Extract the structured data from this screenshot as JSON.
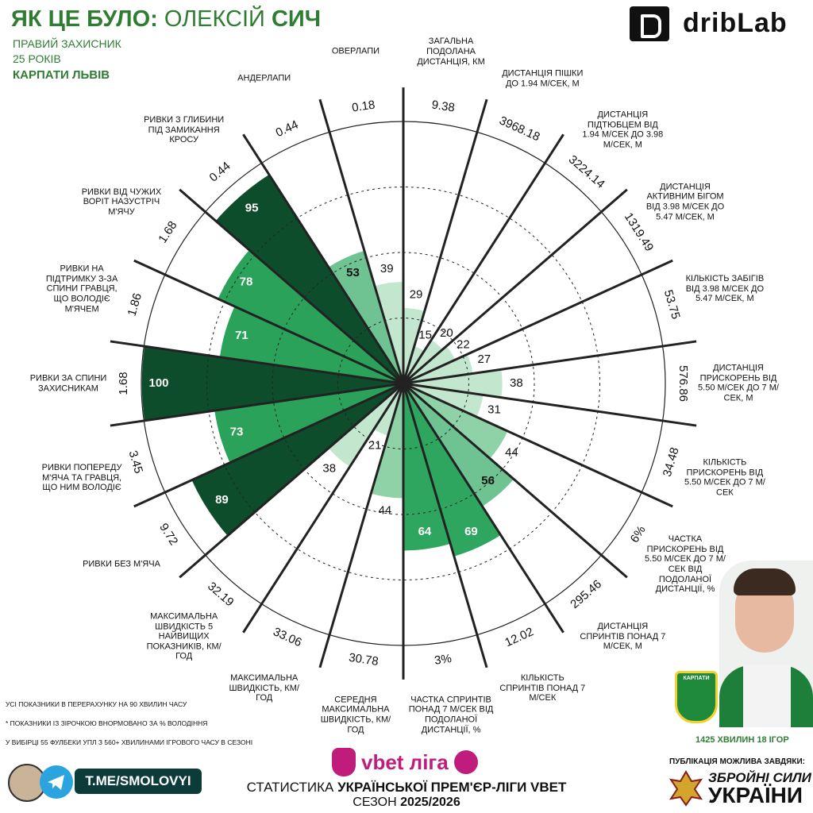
{
  "header": {
    "title_parts": [
      "ЯК ЦЕ БУЛО:",
      "ОЛЕКСІЙ",
      "СИЧ"
    ],
    "position": "ПРАВИЙ ЗАХИСНИК",
    "age": "25 РОКІВ",
    "club": "КАРПАТИ ЛЬВІВ",
    "brand": "dribLab"
  },
  "chart_data": {
    "type": "polar",
    "categories": [
      "ЗАГАЛЬНА ПОДОЛАНА ДИСТАНЦІЯ, КМ",
      "ДИСТАНЦІЯ ПІШКИ ДО 1.94 М/СЕК, М",
      "ДИСТАНЦІЯ ПІДТЮБЦЕМ ВІД 1.94 М/СЕК ДО 3.98 М/СЕК, М",
      "ДИСТАНЦІЯ АКТИВНИМ БІГОМ ВІД 3.98 М/СЕК ДО 5.47 М/СЕК, М",
      "КІЛЬКІСТЬ ЗАБІГІВ ВІД 3.98 М/СЕК ДО 5.47 М/СЕК, М",
      "ДИСТАНЦІЯ ПРИСКОРЕНЬ ВІД 5.50 М/СЕК ДО 7 М/СЕК, М",
      "КІЛЬКІСТЬ ПРИСКОРЕНЬ ВІД 5.50 М/СЕК ДО 7 М/СЕК",
      "ЧАСТКА ПРИСКОРЕНЬ ВІД 5.50 М/СЕК ДО 7 М/СЕК ВІД ПОДОЛАНОЇ ДИСТАНЦІЇ, %",
      "ДИСТАНЦІЯ СПРИНТІВ ПОНАД 7 М/СЕК, М",
      "КІЛЬКІСТЬ СПРИНТІВ ПОНАД 7 М/СЕК",
      "ЧАСТКА СПРИНТІВ ПОНАД 7 М/СЕК ВІД ПОДОЛАНОЇ ДИСТАНЦІЇ, %",
      "СЕРЕДНЯ МАКСИМАЛЬНА ШВИДКІСТЬ, КМ/ГОД",
      "МАКСИМАЛЬНА ШВИДКІСТЬ, КМ/ГОД",
      "МАКСИМАЛЬНА ШВИДКІСТЬ 5 НАЙВИЩИХ ПОКАЗНИКІВ, КМ/ГОД",
      "РИВКИ БЕЗ М'ЯЧА",
      "РИВКИ ПОПЕРЕДУ М'ЯЧА ТА ГРАВЦЯ, ЩО НИМ ВОЛОДІЄ",
      "РИВКИ ЗА СПИНИ ЗАХИСНИКАМ",
      "РИВКИ НА ПІДТРИМКУ З-ЗА СПИНИ ГРАВЦЯ, ЩО ВОЛОДІЄ М'ЯЧЕМ",
      "РИВКИ ВІД ЧУЖИХ ВОРІТ НАЗУСТРІЧ М'ЯЧУ",
      "РИВКИ З ГЛИБИНИ ПІД ЗАМИКАННЯ КРОСУ",
      "АНДЕРЛАПИ",
      "ОВЕРЛАПИ"
    ],
    "stats": [
      "9.38",
      "3968.18",
      "3224.14",
      "1319.49",
      "53.75",
      "576.86",
      "34.48",
      "6%",
      "295.46",
      "12.02",
      "3%",
      "30.78",
      "33.06",
      "32.19",
      "9.72",
      "3.45",
      "1.68",
      "1.86",
      "1.68",
      "0.44",
      "0.44",
      "0.18"
    ],
    "values": [
      29,
      15,
      20,
      22,
      27,
      38,
      31,
      44,
      56,
      69,
      64,
      44,
      21,
      38,
      89,
      73,
      100,
      71,
      78,
      95,
      53,
      39
    ],
    "colors": [
      "#c3e6cf",
      "#c3e6cf",
      "#c3e6cf",
      "#c3e6cf",
      "#c3e6cf",
      "#c3e6cf",
      "#c3e6cf",
      "#8fd2a8",
      "#6fc291",
      "#2ea660",
      "#2ea660",
      "#8fd2a8",
      "#c3e6cf",
      "#c3e6cf",
      "#0d4d2b",
      "#2aa25a",
      "#0d4d2b",
      "#2aa25a",
      "#2aa25a",
      "#0d4d2b",
      "#6fc291",
      "#c3e6cf"
    ],
    "ylim": [
      0,
      100
    ],
    "yticks": [
      25,
      50,
      75,
      100
    ],
    "grid": true
  },
  "notes": [
    "УСІ ПОКАЗНИКИ В ПЕРЕРАХУНКУ НА 90 ХВИЛИН ЧАСУ",
    "* ПОКАЗНИКИ ІЗ ЗІРОЧКОЮ ВНОРМОВАНО ЗА % ВОЛОДІННЯ",
    "У ВИБІРЦІ 55 ФУЛБЕКИ УПЛ З 560+ ХВИЛИНАМИ ІГРОВОГО ЧАСУ В СЕЗОНІ"
  ],
  "footer": {
    "telegram": "T.ME/SMOLOVYI",
    "league": "vbet ліга",
    "source_parts": [
      "СТАТИСТИКА",
      "УКРАЇНСЬКОЇ ПРЕМ'ЄР-ЛІГИ VBET"
    ],
    "season_parts": [
      "СЕЗОН",
      "2025/2026"
    ],
    "minutes": "1425 ХВИЛИН 18 ІГОР",
    "badge": "КАРПАТИ",
    "thanks": "ПУБЛІКАЦІЯ МОЖЛИВА ЗАВДЯКИ:",
    "army_1": "ЗБРОЙНІ СИЛИ",
    "army_2": "УКРАЇНИ"
  }
}
